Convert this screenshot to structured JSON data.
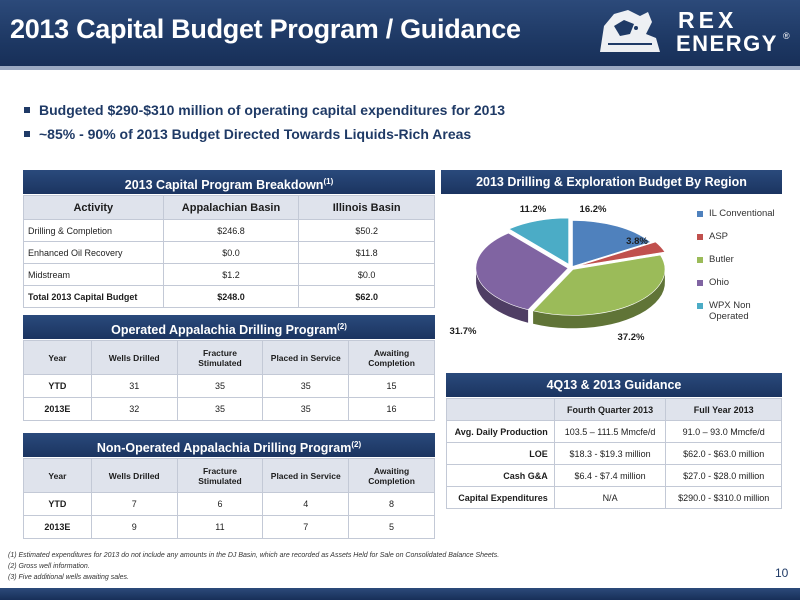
{
  "header": {
    "title": "2013 Capital Budget Program / Guidance",
    "logo": {
      "line1": "REX",
      "line2": "ENERGY",
      "mark": "®"
    }
  },
  "bullets": [
    "Budgeted $290-$310 million of operating capital expenditures for 2013",
    "~85% - 90% of 2013 Budget Directed Towards Liquids-Rich Areas"
  ],
  "capital_program": {
    "title": "2013 Capital Program Breakdown",
    "title_sup": "(1)",
    "columns": [
      "Activity",
      "Appalachian Basin",
      "Illinois Basin"
    ],
    "rows": [
      [
        "Drilling & Completion",
        "$246.8",
        "$50.2"
      ],
      [
        "Enhanced Oil Recovery",
        "$0.0",
        "$11.8"
      ],
      [
        "Midstream",
        "$1.2",
        "$0.0"
      ]
    ],
    "total": [
      "Total 2013 Capital Budget",
      "$248.0",
      "$62.0"
    ]
  },
  "operated": {
    "title": "Operated Appalachia Drilling Program",
    "title_sup": "(2)",
    "columns": [
      "Year",
      "Wells Drilled",
      "Fracture Stimulated",
      "Placed in Service",
      "Awaiting Completion"
    ],
    "rows": [
      [
        "YTD",
        "31",
        "35",
        "35",
        "15"
      ],
      [
        "2013E",
        "32",
        "35",
        "35",
        "16"
      ]
    ]
  },
  "non_operated": {
    "title": "Non-Operated Appalachia Drilling Program",
    "title_sup": "(2)",
    "columns": [
      "Year",
      "Wells Drilled",
      "Fracture Stimulated",
      "Placed in Service",
      "Awaiting Completion"
    ],
    "rows": [
      [
        "YTD",
        "7",
        "6",
        "4",
        "8"
      ],
      [
        "2013E",
        "9",
        "11",
        "7",
        "5"
      ]
    ]
  },
  "guidance": {
    "title": "4Q13 & 2013 Guidance",
    "columns": [
      "",
      "Fourth Quarter 2013",
      "Full Year 2013"
    ],
    "rows": [
      [
        "Avg. Daily Production",
        "103.5 – 111.5 Mmcfe/d",
        "91.0 – 93.0 Mmcfe/d"
      ],
      [
        "LOE",
        "$18.3 - $19.3 million",
        "$62.0 - $63.0 million"
      ],
      [
        "Cash G&A",
        "$6.4 - $7.4 million",
        "$27.0 - $28.0 million"
      ],
      [
        "Capital Expenditures",
        "N/A",
        "$290.0 - $310.0 million"
      ]
    ]
  },
  "chart_data": {
    "type": "pie",
    "title": "2013 Drilling & Exploration Budget By Region",
    "slices": [
      {
        "label": "IL Conventional",
        "value": 16.2,
        "display": "16.2%",
        "color": "#4f81bd"
      },
      {
        "label": "ASP",
        "value": 3.8,
        "display": "3.8%",
        "color": "#c0504d"
      },
      {
        "label": "Butler",
        "value": 37.2,
        "display": "37.2%",
        "color": "#9bbb59"
      },
      {
        "label": "Ohio",
        "value": 31.7,
        "display": "31.7%",
        "color": "#8064a2"
      },
      {
        "label": "WPX Non Operated",
        "value": 11.2,
        "display": "11.2%",
        "color": "#4bacc6"
      }
    ],
    "legend_position": "right"
  },
  "footnotes": [
    "(1) Estimated expenditures for 2013 do not include any amounts in the DJ Basin, which are recorded as Assets Held for Sale on Consolidated Balance Sheets.",
    "(2) Gross well information.",
    "(3) Five additional wells awaiting sales."
  ],
  "page_number": "10"
}
